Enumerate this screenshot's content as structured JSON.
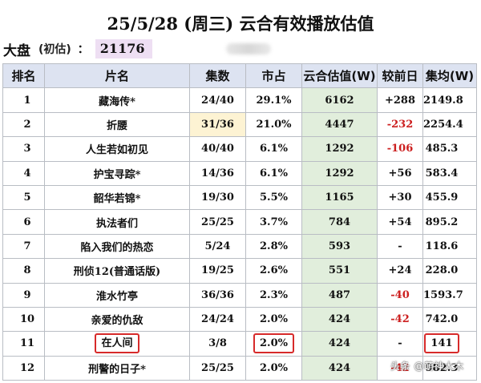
{
  "title": "25/5/28 (周三) 云合有效播放估值",
  "dapan": {
    "label": "大盘",
    "estimate_note": "(初估)",
    "colon": "：",
    "value": "21176"
  },
  "watermark": "头条 @萌神大木",
  "colors": {
    "header_bg": "#dde3f1",
    "value_col_bg": "#e1eedc",
    "negative": "#cc1f1f",
    "highlight_box": "#d72a2a",
    "dapan_bg": "#eedff3",
    "eps_highlight": "#fdf3d3"
  },
  "table": {
    "headers": [
      "排名",
      "片名",
      "集数",
      "市占",
      "云合估值(W)",
      "较前日",
      "集均(W)"
    ],
    "rows": [
      {
        "rank": "1",
        "name": "藏海传*",
        "eps": "24/40",
        "share": "29.1%",
        "value": "6162",
        "change": "+288",
        "change_negative": false,
        "avg": "2149.8"
      },
      {
        "rank": "2",
        "name": "折腰",
        "eps": "31/36",
        "share": "21.0%",
        "value": "4447",
        "change": "-232",
        "change_negative": true,
        "avg": "2254.4"
      },
      {
        "rank": "3",
        "name": "人生若如初见",
        "eps": "40/40",
        "share": "6.1%",
        "value": "1292",
        "change": "-106",
        "change_negative": true,
        "avg": "485.3"
      },
      {
        "rank": "4",
        "name": "护宝寻踪*",
        "eps": "14/36",
        "share": "6.1%",
        "value": "1292",
        "change": "+56",
        "change_negative": false,
        "avg": "583.4"
      },
      {
        "rank": "5",
        "name": "韶华若锦*",
        "eps": "19/30",
        "share": "5.5%",
        "value": "1165",
        "change": "+30",
        "change_negative": false,
        "avg": "455.9"
      },
      {
        "rank": "6",
        "name": "执法者们",
        "eps": "25/25",
        "share": "3.7%",
        "value": "784",
        "change": "+54",
        "change_negative": false,
        "avg": "895.2"
      },
      {
        "rank": "7",
        "name": "陷入我们的热恋",
        "eps": "5/24",
        "share": "2.8%",
        "value": "593",
        "change": "-",
        "change_negative": false,
        "avg": "118.6"
      },
      {
        "rank": "8",
        "name": "刑侦12(普通话版)",
        "eps": "19/25",
        "share": "2.6%",
        "value": "551",
        "change": "+24",
        "change_negative": false,
        "avg": "228.0"
      },
      {
        "rank": "9",
        "name": "淮水竹亭",
        "eps": "36/36",
        "share": "2.3%",
        "value": "487",
        "change": "-40",
        "change_negative": true,
        "avg": "1593.7"
      },
      {
        "rank": "10",
        "name": "亲爱的仇敌",
        "eps": "24/24",
        "share": "2.0%",
        "value": "424",
        "change": "-42",
        "change_negative": true,
        "avg": "742.0"
      },
      {
        "rank": "11",
        "name": "在人间",
        "eps": "3/8",
        "share": "2.0%",
        "value": "424",
        "change": "-",
        "change_negative": false,
        "avg": "141"
      },
      {
        "rank": "12",
        "name": "刑警的日子*",
        "eps": "25/25",
        "share": "2.0%",
        "value": "424",
        "change": "-42",
        "change_negative": true,
        "avg": "982.3"
      }
    ]
  }
}
